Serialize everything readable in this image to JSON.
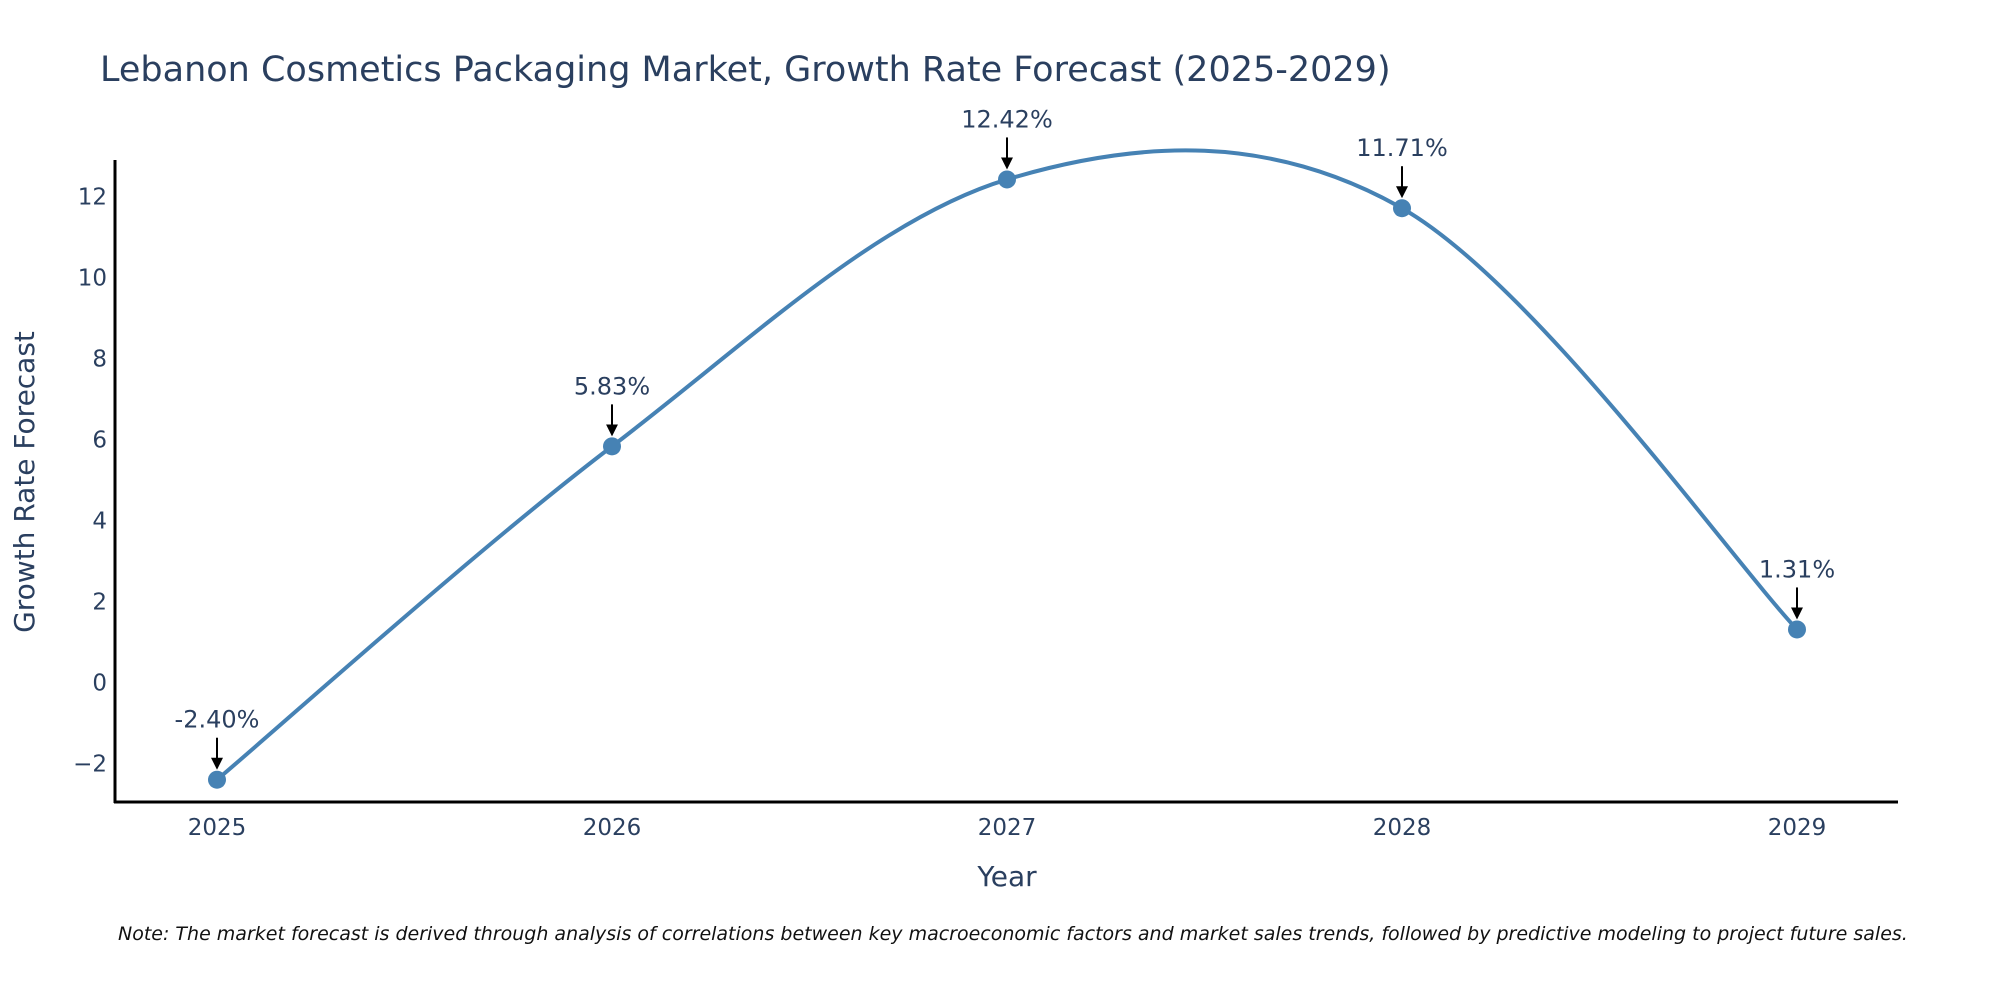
{
  "chart_data": {
    "type": "line",
    "title": "Lebanon Cosmetics Packaging Market, Growth Rate Forecast (2025-2029)",
    "xlabel": "Year",
    "ylabel": "Growth Rate Forecast",
    "categories": [
      "2025",
      "2026",
      "2027",
      "2028",
      "2029"
    ],
    "series": [
      {
        "name": "Growth Rate Forecast",
        "values": [
          -2.4,
          5.83,
          12.42,
          11.71,
          1.31
        ]
      }
    ],
    "data_labels": [
      "-2.40%",
      "5.83%",
      "12.42%",
      "11.71%",
      "1.31%"
    ],
    "yticks": [
      -2,
      0,
      2,
      4,
      6,
      8,
      10,
      12
    ],
    "ytick_labels": [
      "−2",
      "0",
      "2",
      "4",
      "6",
      "8",
      "10",
      "12"
    ],
    "ylim": [
      -2.95,
      12.9
    ],
    "grid": false,
    "line_color": "#4682b4",
    "marker_color": "#4682b4",
    "arrow_color": "#000000",
    "axis_color": "#000000",
    "note": "Note: The market forecast is derived through analysis of correlations between key macroeconomic factors and market sales trends, followed by predictive modeling to project future sales."
  }
}
